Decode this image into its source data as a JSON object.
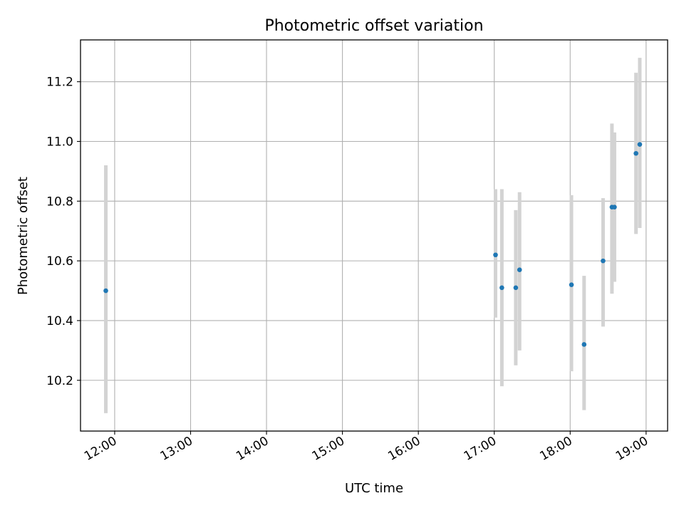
{
  "chart_data": {
    "type": "scatter",
    "title": "Photometric offset variation",
    "xlabel": "UTC time",
    "ylabel": "Photometric offset",
    "xlim": [
      "11:33",
      "19:17"
    ],
    "ylim": [
      10.03,
      11.34
    ],
    "x_ticks": [
      "12:00",
      "13:00",
      "14:00",
      "15:00",
      "16:00",
      "17:00",
      "18:00",
      "19:00"
    ],
    "y_ticks": [
      10.2,
      10.4,
      10.6,
      10.8,
      11.0,
      11.2
    ],
    "y_tick_labels": [
      "10.2",
      "10.4",
      "10.6",
      "10.8",
      "11.0",
      "11.2"
    ],
    "grid": true,
    "series": [
      {
        "marker_color": "#1f77b4",
        "errorbar_color": "#d3d3d3",
        "points": [
          {
            "time": "11:53",
            "value": 10.5,
            "err_low": 10.09,
            "err_high": 10.92
          },
          {
            "time": "17:01",
            "value": 10.62,
            "err_low": 10.41,
            "err_high": 10.84
          },
          {
            "time": "17:06",
            "value": 10.51,
            "err_low": 10.18,
            "err_high": 10.84
          },
          {
            "time": "17:17",
            "value": 10.51,
            "err_low": 10.25,
            "err_high": 10.77
          },
          {
            "time": "17:20",
            "value": 10.57,
            "err_low": 10.3,
            "err_high": 10.83
          },
          {
            "time": "18:01",
            "value": 10.52,
            "err_low": 10.23,
            "err_high": 10.82
          },
          {
            "time": "18:11",
            "value": 10.32,
            "err_low": 10.1,
            "err_high": 10.55
          },
          {
            "time": "18:26",
            "value": 10.6,
            "err_low": 10.38,
            "err_high": 10.81
          },
          {
            "time": "18:33",
            "value": 10.78,
            "err_low": 10.49,
            "err_high": 11.06
          },
          {
            "time": "18:35",
            "value": 10.78,
            "err_low": 10.53,
            "err_high": 11.03
          },
          {
            "time": "18:52",
            "value": 10.96,
            "err_low": 10.69,
            "err_high": 11.23
          },
          {
            "time": "18:55",
            "value": 10.99,
            "err_low": 10.71,
            "err_high": 11.28
          }
        ]
      }
    ]
  }
}
